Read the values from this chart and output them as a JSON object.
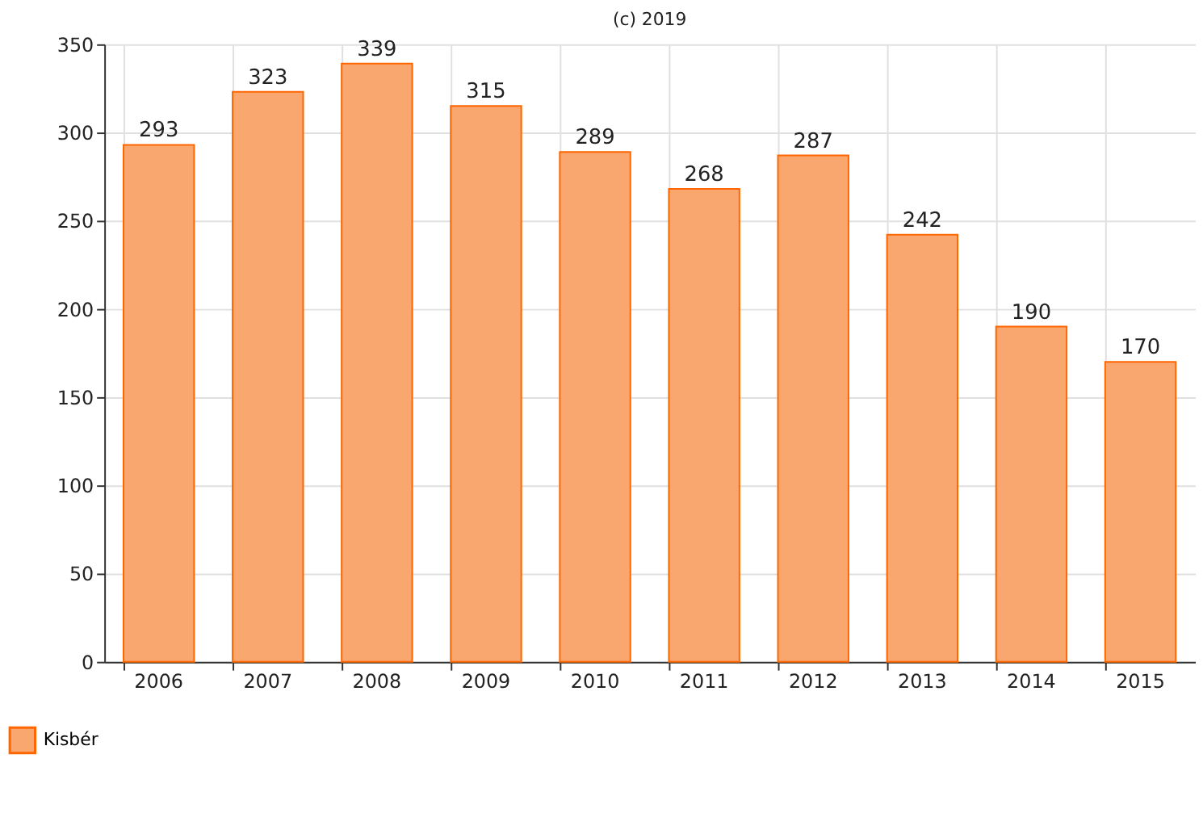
{
  "chart_data": {
    "type": "bar",
    "annotations": [
      "(c) 2019"
    ],
    "categories": [
      "2006",
      "2007",
      "2008",
      "2009",
      "2010",
      "2011",
      "2012",
      "2013",
      "2014",
      "2015"
    ],
    "series": [
      {
        "name": "Kisbér",
        "color": "#f9a66f",
        "values": [
          293,
          323,
          339,
          315,
          289,
          268,
          287,
          242,
          190,
          170
        ]
      }
    ],
    "ylim": [
      0,
      350
    ],
    "yticks": [
      0,
      50,
      100,
      150,
      200,
      250,
      300,
      350
    ],
    "data_labels": true,
    "grid": true,
    "legend": "bottom left"
  }
}
